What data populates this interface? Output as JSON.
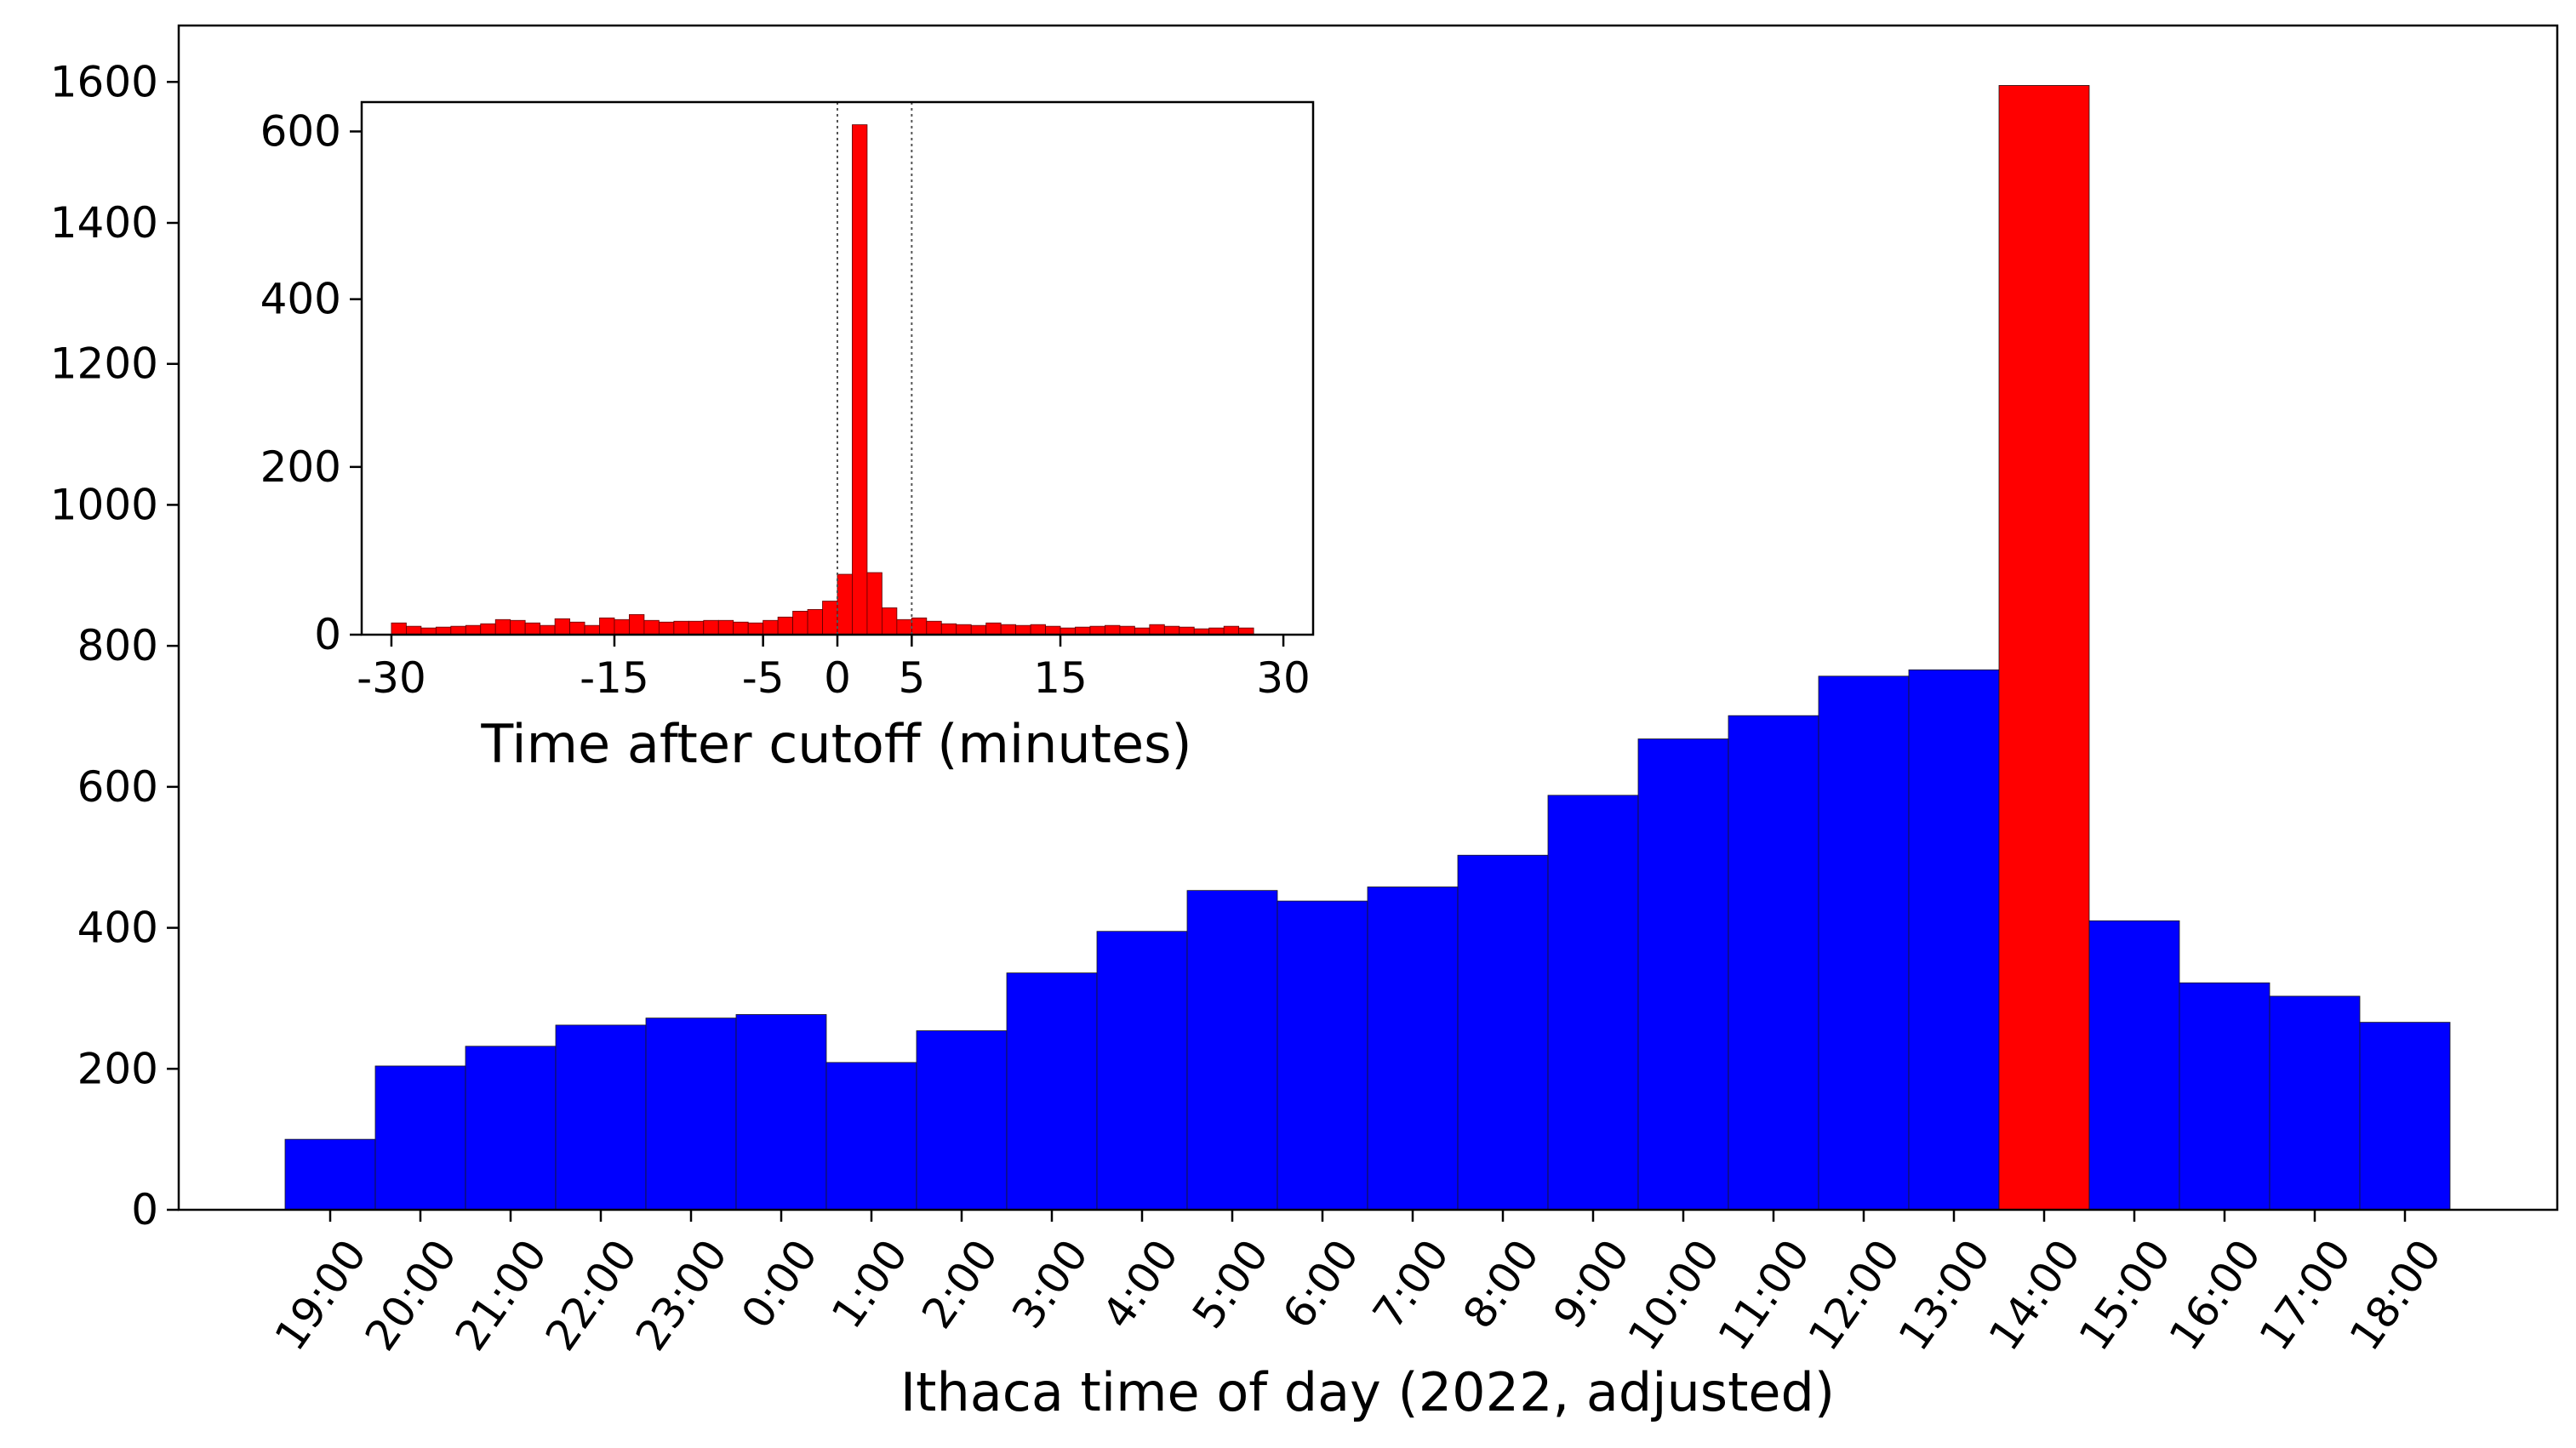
{
  "chart_data": [
    {
      "id": "main",
      "type": "bar",
      "xlabel": "Ithaca time of day (2022, adjusted)",
      "ylabel": "",
      "ylim": [
        0,
        1680
      ],
      "yticks": [
        0,
        200,
        400,
        600,
        800,
        1000,
        1200,
        1400,
        1600
      ],
      "ytick_labels": [
        "0",
        "200",
        "400",
        "600",
        "800",
        "1000",
        "1200",
        "1400",
        "1600"
      ],
      "categories": [
        "19:00",
        "20:00",
        "21:00",
        "22:00",
        "23:00",
        "0:00",
        "1:00",
        "2:00",
        "3:00",
        "4:00",
        "5:00",
        "6:00",
        "7:00",
        "8:00",
        "9:00",
        "10:00",
        "11:00",
        "12:00",
        "13:00",
        "14:00",
        "15:00",
        "16:00",
        "17:00",
        "18:00"
      ],
      "values": [
        100,
        204,
        232,
        262,
        272,
        277,
        209,
        254,
        336,
        395,
        453,
        438,
        458,
        503,
        588,
        668,
        701,
        757,
        766,
        1595,
        410,
        322,
        303,
        266
      ],
      "highlight_index": 19,
      "bar_color": "#0000ff",
      "highlight_color": "#ff0000",
      "grid": false,
      "legend": "none"
    },
    {
      "id": "inset",
      "type": "bar",
      "xlabel": "Time after cutoff (minutes)",
      "ylabel": "",
      "xlim": [
        -32,
        32
      ],
      "ylim": [
        0,
        635
      ],
      "xticks": [
        -30,
        -15,
        -5,
        0,
        5,
        15,
        30
      ],
      "xtick_labels": [
        "-30",
        "-15",
        "-5",
        "0",
        "5",
        "15",
        "30"
      ],
      "yticks": [
        0,
        200,
        400,
        600
      ],
      "ytick_labels": [
        "0",
        "200",
        "400",
        "600"
      ],
      "bin_start": -30,
      "bin_width": 1,
      "values": [
        14,
        10,
        8,
        9,
        10,
        11,
        13,
        18,
        17,
        14,
        11,
        19,
        15,
        11,
        20,
        18,
        24,
        17,
        15,
        16,
        16,
        17,
        17,
        15,
        14,
        17,
        21,
        28,
        30,
        40,
        72,
        608,
        74,
        32,
        18,
        20,
        16,
        13,
        12,
        11,
        14,
        12,
        11,
        12,
        10,
        8,
        9,
        10,
        11,
        10,
        8,
        12,
        10,
        9,
        7,
        8,
        10,
        8
      ],
      "vlines": [
        0,
        5
      ],
      "bar_color": "#ff0000",
      "grid": false,
      "legend": "none"
    }
  ]
}
